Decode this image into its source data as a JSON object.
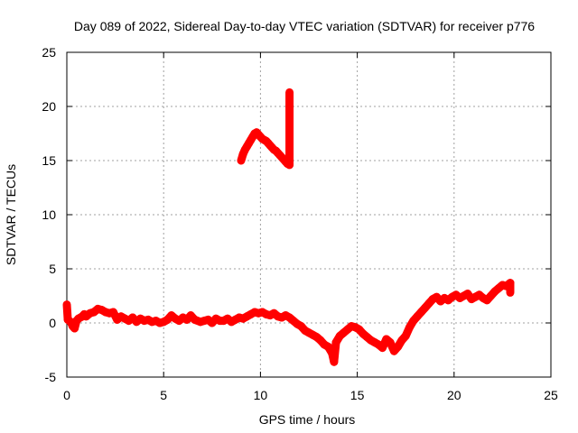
{
  "chart_data": {
    "type": "scatter",
    "title": "Day 089 of 2022, Sidereal Day-to-day VTEC variation (SDTVAR) for receiver p776",
    "xlabel": "GPS time / hours",
    "ylabel": "SDTVAR / TECUs",
    "xlim": [
      0,
      25
    ],
    "ylim": [
      -5,
      25
    ],
    "xticks": [
      0,
      5,
      10,
      15,
      20,
      25
    ],
    "yticks": [
      -5,
      0,
      5,
      10,
      15,
      20,
      25
    ],
    "grid": true,
    "marker": "plus",
    "colors": {
      "series": "#ff0000",
      "grid": "#a0a0a0",
      "axis": "#000000"
    },
    "series": [
      {
        "name": "SDTVAR",
        "points": [
          [
            0.0,
            1.7
          ],
          [
            0.05,
            0.3
          ],
          [
            0.2,
            0.1
          ],
          [
            0.3,
            -0.3
          ],
          [
            0.4,
            -0.5
          ],
          [
            0.5,
            0.2
          ],
          [
            0.6,
            0.4
          ],
          [
            0.8,
            0.6
          ],
          [
            0.9,
            0.8
          ],
          [
            1.0,
            0.6
          ],
          [
            1.2,
            0.9
          ],
          [
            1.4,
            1.0
          ],
          [
            1.6,
            1.3
          ],
          [
            1.8,
            1.2
          ],
          [
            2.0,
            1.0
          ],
          [
            2.2,
            0.9
          ],
          [
            2.4,
            1.0
          ],
          [
            2.6,
            0.3
          ],
          [
            2.8,
            0.6
          ],
          [
            3.0,
            0.4
          ],
          [
            3.2,
            0.2
          ],
          [
            3.4,
            0.5
          ],
          [
            3.6,
            0.1
          ],
          [
            3.8,
            0.4
          ],
          [
            4.0,
            0.2
          ],
          [
            4.2,
            0.3
          ],
          [
            4.4,
            0.1
          ],
          [
            4.6,
            0.2
          ],
          [
            4.8,
            0.0
          ],
          [
            5.0,
            0.1
          ],
          [
            5.2,
            0.3
          ],
          [
            5.4,
            0.7
          ],
          [
            5.6,
            0.4
          ],
          [
            5.8,
            0.2
          ],
          [
            6.0,
            0.5
          ],
          [
            6.2,
            0.3
          ],
          [
            6.4,
            0.7
          ],
          [
            6.6,
            0.3
          ],
          [
            6.9,
            0.1
          ],
          [
            7.1,
            0.2
          ],
          [
            7.3,
            0.3
          ],
          [
            7.5,
            0.0
          ],
          [
            7.7,
            0.4
          ],
          [
            7.9,
            0.2
          ],
          [
            8.1,
            0.2
          ],
          [
            8.3,
            0.4
          ],
          [
            8.5,
            0.1
          ],
          [
            8.7,
            0.3
          ],
          [
            8.9,
            0.5
          ],
          [
            9.1,
            0.4
          ],
          [
            9.3,
            0.6
          ],
          [
            9.5,
            0.8
          ],
          [
            9.7,
            1.0
          ],
          [
            9.9,
            0.9
          ],
          [
            10.1,
            1.0
          ],
          [
            10.3,
            0.8
          ],
          [
            10.5,
            0.7
          ],
          [
            10.7,
            0.9
          ],
          [
            10.9,
            0.6
          ],
          [
            11.1,
            0.5
          ],
          [
            11.3,
            0.7
          ],
          [
            11.5,
            0.5
          ],
          [
            11.7,
            0.2
          ],
          [
            11.9,
            -0.1
          ],
          [
            12.1,
            -0.3
          ],
          [
            12.3,
            -0.7
          ],
          [
            12.5,
            -0.9
          ],
          [
            12.7,
            -1.1
          ],
          [
            12.9,
            -1.3
          ],
          [
            13.1,
            -1.6
          ],
          [
            13.3,
            -2.0
          ],
          [
            13.5,
            -2.2
          ],
          [
            13.7,
            -2.8
          ],
          [
            13.8,
            -3.6
          ],
          [
            13.9,
            -1.8
          ],
          [
            14.1,
            -1.2
          ],
          [
            14.3,
            -0.9
          ],
          [
            14.5,
            -0.6
          ],
          [
            14.7,
            -0.3
          ],
          [
            14.9,
            -0.4
          ],
          [
            15.1,
            -0.6
          ],
          [
            15.3,
            -1.0
          ],
          [
            15.5,
            -1.3
          ],
          [
            15.7,
            -1.6
          ],
          [
            15.9,
            -1.8
          ],
          [
            16.1,
            -2.0
          ],
          [
            16.3,
            -2.3
          ],
          [
            16.5,
            -1.5
          ],
          [
            16.7,
            -1.8
          ],
          [
            16.9,
            -2.6
          ],
          [
            17.1,
            -2.2
          ],
          [
            17.3,
            -1.6
          ],
          [
            17.5,
            -1.2
          ],
          [
            17.7,
            -0.4
          ],
          [
            17.9,
            0.2
          ],
          [
            18.1,
            0.6
          ],
          [
            18.3,
            1.0
          ],
          [
            18.5,
            1.4
          ],
          [
            18.7,
            1.8
          ],
          [
            18.9,
            2.2
          ],
          [
            19.1,
            2.4
          ],
          [
            19.3,
            2.0
          ],
          [
            19.5,
            2.3
          ],
          [
            19.7,
            2.1
          ],
          [
            19.9,
            2.4
          ],
          [
            20.1,
            2.6
          ],
          [
            20.3,
            2.3
          ],
          [
            20.5,
            2.5
          ],
          [
            20.7,
            2.7
          ],
          [
            20.9,
            2.2
          ],
          [
            21.1,
            2.4
          ],
          [
            21.3,
            2.6
          ],
          [
            21.5,
            2.3
          ],
          [
            21.7,
            2.1
          ],
          [
            21.9,
            2.5
          ],
          [
            22.1,
            2.9
          ],
          [
            22.3,
            3.2
          ],
          [
            22.5,
            3.5
          ],
          [
            22.7,
            3.4
          ],
          [
            22.9,
            3.7
          ],
          [
            22.9,
            2.8
          ],
          [
            9.0,
            15.0
          ],
          [
            9.1,
            15.6
          ],
          [
            9.2,
            16.0
          ],
          [
            9.3,
            16.3
          ],
          [
            9.4,
            16.6
          ],
          [
            9.5,
            16.9
          ],
          [
            9.6,
            17.2
          ],
          [
            9.7,
            17.5
          ],
          [
            9.8,
            17.6
          ],
          [
            9.9,
            17.4
          ],
          [
            10.0,
            17.2
          ],
          [
            10.1,
            17.0
          ],
          [
            10.2,
            16.9
          ],
          [
            10.3,
            16.8
          ],
          [
            10.4,
            16.6
          ],
          [
            10.5,
            16.4
          ],
          [
            10.6,
            16.2
          ],
          [
            10.7,
            16.0
          ],
          [
            10.8,
            15.9
          ],
          [
            10.9,
            15.7
          ],
          [
            11.0,
            15.5
          ],
          [
            11.1,
            15.3
          ],
          [
            11.2,
            15.1
          ],
          [
            11.3,
            14.9
          ],
          [
            11.4,
            14.7
          ],
          [
            11.5,
            14.6
          ],
          [
            11.5,
            21.3
          ]
        ]
      }
    ]
  }
}
